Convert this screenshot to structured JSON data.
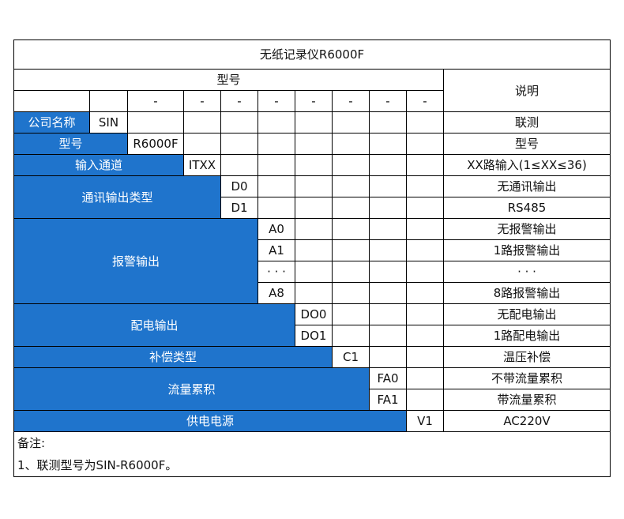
{
  "title": "无纸记录仪R6000F",
  "header": {
    "model_label": "型号",
    "desc_label": "说明",
    "dash": "-"
  },
  "colors": {
    "accent": "#1f74cc"
  },
  "rows": [
    {
      "label": "公司名称",
      "code": "SIN",
      "desc": "联测"
    },
    {
      "label": "型号",
      "code": "R6000F",
      "desc": "型号"
    },
    {
      "label": "输入通道",
      "code": "ITXX",
      "desc": "XX路输入(1≤XX≤36)"
    },
    {
      "label": "通讯输出类型",
      "code": "D0",
      "desc": "无通讯输出"
    },
    {
      "code": "D1",
      "desc": "RS485"
    },
    {
      "label": "报警输出",
      "code": "A0",
      "desc": "无报警输出"
    },
    {
      "code": "A1",
      "desc": "1路报警输出"
    },
    {
      "code": "· · ·",
      "desc": "· · ·"
    },
    {
      "code": "A8",
      "desc": "8路报警输出"
    },
    {
      "label": "配电输出",
      "code": "DO0",
      "desc": "无配电输出"
    },
    {
      "code": "DO1",
      "desc": "1路配电输出"
    },
    {
      "label": "补偿类型",
      "code": "C1",
      "desc": "温压补偿"
    },
    {
      "label": "流量累积",
      "code": "FA0",
      "desc": "不带流量累积"
    },
    {
      "code": "FA1",
      "desc": "带流量累积"
    },
    {
      "label": "供电电源",
      "code": "V1",
      "desc": "AC220V"
    }
  ],
  "notes": {
    "heading": "备注:",
    "line1": "1、联测型号为SIN-R6000F。"
  }
}
